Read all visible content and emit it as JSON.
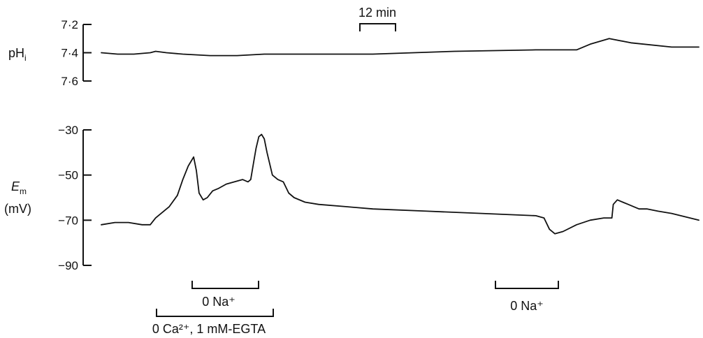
{
  "chart_data": [
    {
      "type": "line",
      "ylabel": "pH",
      "ylabel_sub": "i",
      "yaxis_inverted": true,
      "ylim": [
        7.2,
        7.6
      ],
      "yticks": [
        7.2,
        7.4,
        7.6
      ],
      "ytick_labels": [
        "7·2",
        "7·4",
        "7·6"
      ],
      "x_unit": "min",
      "series": [
        {
          "x": [
            0,
            6,
            12,
            18,
            20,
            24,
            30,
            40,
            50,
            60,
            80,
            100,
            130,
            160,
            175,
            180,
            187,
            195,
            210,
            220
          ],
          "y": [
            7.4,
            7.41,
            7.41,
            7.4,
            7.39,
            7.4,
            7.41,
            7.42,
            7.42,
            7.41,
            7.41,
            7.41,
            7.39,
            7.38,
            7.38,
            7.34,
            7.3,
            7.33,
            7.36,
            7.36
          ]
        }
      ]
    },
    {
      "type": "line",
      "ylabel": "E",
      "ylabel_sub": "m",
      "yunit": "(mV)",
      "ylim": [
        -90,
        -30
      ],
      "yticks": [
        -30,
        -50,
        -70,
        -90
      ],
      "ytick_labels": [
        "−30",
        "−50",
        "−70",
        "−90"
      ],
      "x_unit": "min",
      "series": [
        {
          "x": [
            0,
            5,
            10,
            15,
            18,
            20,
            25,
            28,
            30,
            32,
            33.5,
            34,
            35,
            36,
            37.5,
            39,
            41,
            43,
            46,
            49,
            52,
            54,
            55,
            56,
            57,
            58,
            59,
            60,
            61,
            63,
            65,
            67,
            69,
            71,
            75,
            80,
            90,
            100,
            120,
            140,
            160,
            163,
            165,
            167,
            170,
            175,
            180,
            185,
            188,
            188.5,
            190,
            192,
            194,
            196,
            198,
            201,
            205,
            210,
            220
          ],
          "y": [
            -72,
            -71,
            -71,
            -72,
            -72,
            -69,
            -64,
            -59,
            -52,
            -46,
            -43,
            -42,
            -48,
            -58,
            -61,
            -60,
            -57,
            -56,
            -54,
            -53,
            -52,
            -53,
            -52,
            -45,
            -38,
            -33,
            -32,
            -34,
            -40,
            -50,
            -52,
            -53,
            -58,
            -60,
            -62,
            -63,
            -64,
            -65,
            -66,
            -67,
            -68,
            -69,
            -74,
            -76,
            -75,
            -72,
            -70,
            -69,
            -69,
            -63,
            -61,
            -62,
            -63,
            -64,
            -65,
            -65,
            -66,
            -67,
            -70
          ]
        }
      ]
    }
  ],
  "annotations": {
    "scale_bar": "12 min",
    "na_free_1": "0 Na⁺",
    "ca_free": "0 Ca²⁺, 1 mM-EGTA",
    "na_free_2": "0 Na⁺"
  }
}
